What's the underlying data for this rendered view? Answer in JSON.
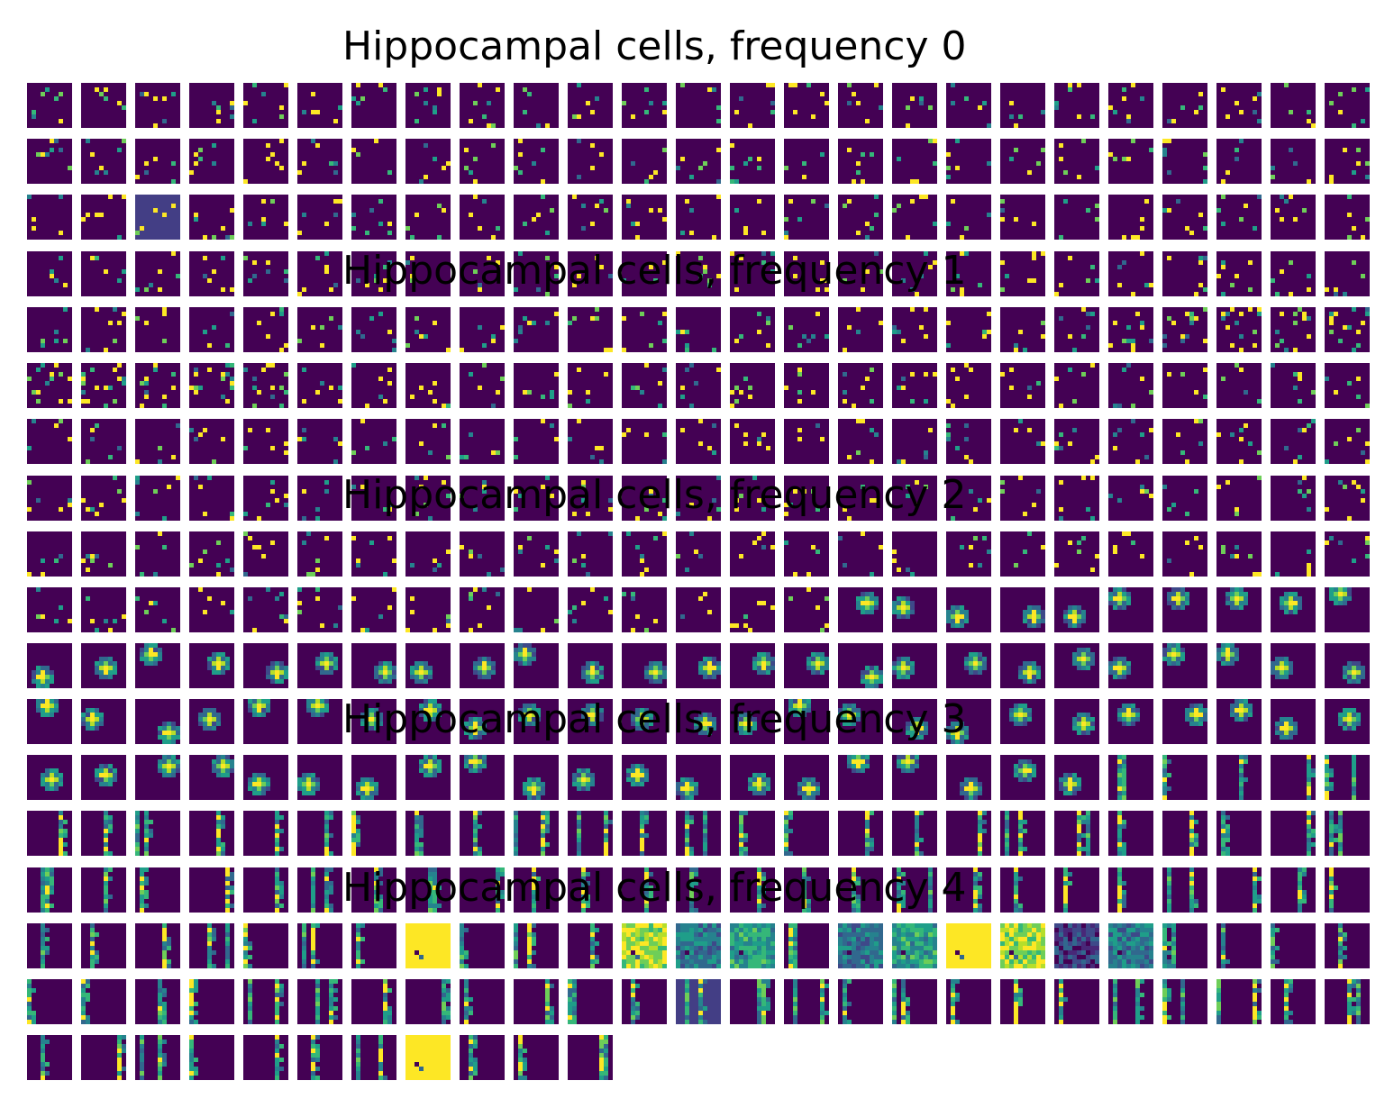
{
  "chart_data": {
    "type": "heatmap",
    "colormap": "viridis",
    "columns_per_row": 25,
    "panels": [
      {
        "title": "Hippocampal cells, frequency 0",
        "n_cells": 120,
        "pattern": "sparse scattered bright pixels on dark background",
        "bright_panels": [],
        "tinted_panels": [
          {
            "index": 52,
            "color": "#433e85"
          }
        ]
      },
      {
        "title": "Hippocampal cells, frequency 1",
        "n_cells": 120,
        "pattern": "sparse scattered pixels, denser in first cells",
        "bright_panels": [],
        "tinted_panels": []
      },
      {
        "title": "Hippocampal cells, frequency 2",
        "n_cells": 80,
        "pattern": "single localized blob (place field)",
        "bright_panels": [],
        "tinted_panels": []
      },
      {
        "title": "Hippocampal cells, frequency 3",
        "n_cells": 56,
        "pattern": "vertical stripes",
        "bright_panels": [],
        "tinted_panels": []
      },
      {
        "title": "Hippocampal cells, frequency 4",
        "n_cells": 60,
        "pattern": "vertical stripes with several saturated cells",
        "bright_panels": [
          {
            "index": 6,
            "style": "yellow"
          },
          {
            "index": 10,
            "style": "yellowgreen"
          },
          {
            "index": 11,
            "style": "teal"
          },
          {
            "index": 12,
            "style": "green"
          },
          {
            "index": 14,
            "style": "teal"
          },
          {
            "index": 15,
            "style": "green"
          },
          {
            "index": 16,
            "style": "yellow"
          },
          {
            "index": 17,
            "style": "yellowgreen"
          },
          {
            "index": 18,
            "style": "blue"
          },
          {
            "index": 19,
            "style": "teal"
          },
          {
            "index": 56,
            "style": "yellow"
          }
        ],
        "tinted_panels": [
          {
            "index": 36,
            "color": "#433e85"
          }
        ]
      }
    ]
  }
}
